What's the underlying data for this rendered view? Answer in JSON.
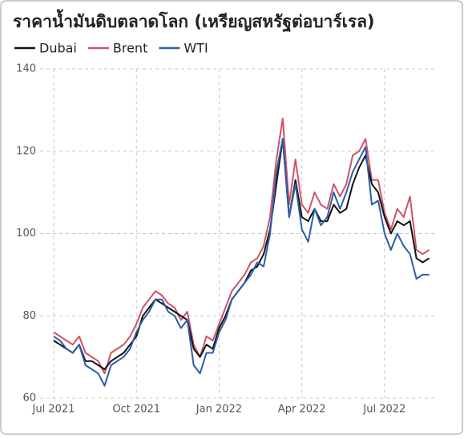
{
  "chart_data": {
    "type": "line",
    "title": "ราคาน้ำมันดิบตลาดโลก (เหรียญสหรัฐต่อบาร์เรล)",
    "categories": [
      "Jul 2021",
      null,
      null,
      null,
      null,
      null,
      null,
      null,
      null,
      null,
      null,
      null,
      null,
      "Oct 2021",
      null,
      null,
      null,
      null,
      null,
      null,
      null,
      null,
      null,
      null,
      null,
      null,
      "Jan 2022",
      null,
      null,
      null,
      null,
      null,
      null,
      null,
      null,
      null,
      null,
      null,
      null,
      "Apr 2022",
      null,
      null,
      null,
      null,
      null,
      null,
      null,
      null,
      null,
      null,
      null,
      null,
      "Jul 2022",
      null,
      null,
      null,
      null,
      null,
      null,
      null
    ],
    "series": [
      {
        "name": "Dubai",
        "color": "#111111",
        "values": [
          74,
          73,
          72,
          71,
          73,
          69,
          69,
          68,
          67,
          69,
          70,
          71,
          73,
          75,
          80,
          82,
          84,
          83,
          82,
          81,
          80,
          79,
          72,
          70,
          73,
          72,
          77,
          80,
          84,
          86,
          88,
          91,
          92,
          95,
          101,
          112,
          123,
          104,
          113,
          104,
          103,
          106,
          103,
          103,
          107,
          105,
          106,
          112,
          116,
          119,
          112,
          110,
          104,
          100,
          103,
          102,
          103,
          94,
          93,
          94
        ]
      },
      {
        "name": "Brent",
        "color": "#cf5466",
        "values": [
          76,
          75,
          74,
          73,
          75,
          71,
          70,
          69,
          66,
          71,
          72,
          73,
          75,
          78,
          82,
          84,
          86,
          85,
          83,
          82,
          79,
          81,
          73,
          70,
          75,
          74,
          78,
          82,
          86,
          88,
          90,
          93,
          94,
          97,
          104,
          118,
          128,
          107,
          118,
          107,
          105,
          110,
          107,
          106,
          112,
          109,
          112,
          119,
          120,
          123,
          113,
          113,
          105,
          101,
          106,
          104,
          109,
          96,
          95,
          96
        ]
      },
      {
        "name": "WTI",
        "color": "#2c5ea8",
        "values": [
          75,
          74,
          72,
          71,
          73,
          68,
          67,
          66,
          63,
          68,
          69,
          70,
          72,
          76,
          79,
          81,
          84,
          84,
          81,
          80,
          77,
          79,
          68,
          66,
          71,
          71,
          76,
          79,
          84,
          86,
          88,
          90,
          93,
          92,
          100,
          115,
          123,
          104,
          112,
          101,
          98,
          106,
          102,
          104,
          110,
          106,
          110,
          115,
          118,
          121,
          107,
          108,
          100,
          96,
          100,
          97,
          95,
          89,
          90,
          90
        ]
      }
    ],
    "ylim": [
      60,
      140
    ],
    "yticks": [
      60,
      80,
      100,
      120,
      140
    ],
    "grid": true,
    "legend": "top-left"
  }
}
